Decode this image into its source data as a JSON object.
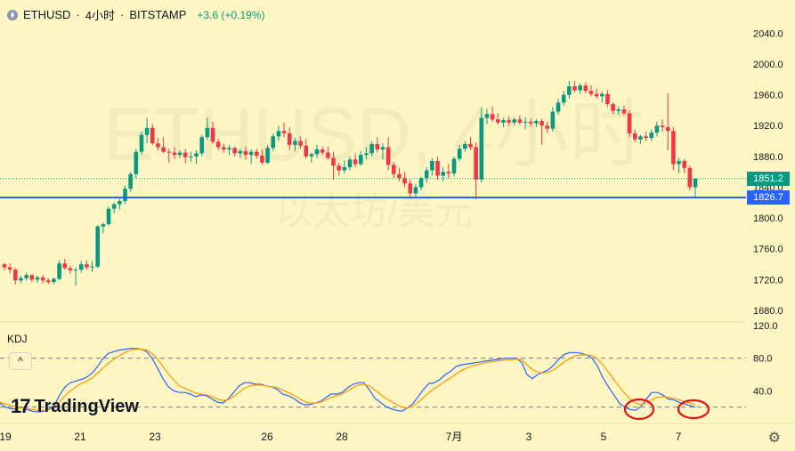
{
  "header": {
    "symbol": "ETHUSD",
    "interval": "4小时",
    "exchange": "BITSTAMP",
    "sep": "·",
    "change": "+3.6 (+0.19%)",
    "icon": "ethereum-icon"
  },
  "watermark": {
    "line1": "ETHUSD, 4小时",
    "line2": "以太坊/美元"
  },
  "indicator": {
    "name": "KDJ",
    "collapse_symbol": "^"
  },
  "brand": {
    "logo_mark": "17",
    "name": "TradingView"
  },
  "colors": {
    "up": "#089981",
    "down": "#f23645",
    "k_line": "#2962ff",
    "d_line": "#ff9800",
    "support": "#2962ff",
    "annotation": "#e81010"
  },
  "chart_data": [
    {
      "type": "candlestick",
      "title": "ETHUSD · 4小时 · BITSTAMP",
      "ylim": [
        1665,
        2060
      ],
      "yticks": [
        "2040.0",
        "2000.0",
        "1960.0",
        "1920.0",
        "1880.0",
        "1840.0",
        "1800.0",
        "1760.0",
        "1720.0",
        "1680.0"
      ],
      "last_price": 1851.2,
      "last_price_label": "1851.2",
      "support_level": 1826.7,
      "support_label": "1826.7",
      "candles": [
        [
          1740,
          1742,
          1732,
          1736
        ],
        [
          1736,
          1741,
          1728,
          1733
        ],
        [
          1733,
          1735,
          1714,
          1719
        ],
        [
          1719,
          1725,
          1716,
          1722
        ],
        [
          1722,
          1729,
          1719,
          1726
        ],
        [
          1726,
          1727,
          1717,
          1720
        ],
        [
          1720,
          1725,
          1716,
          1723
        ],
        [
          1723,
          1726,
          1715,
          1719
        ],
        [
          1719,
          1722,
          1714,
          1717
        ],
        [
          1717,
          1723,
          1714,
          1721
        ],
        [
          1721,
          1745,
          1719,
          1741
        ],
        [
          1741,
          1747,
          1733,
          1735
        ],
        [
          1735,
          1738,
          1728,
          1732
        ],
        [
          1732,
          1736,
          1712,
          1733
        ],
        [
          1733,
          1744,
          1729,
          1740
        ],
        [
          1740,
          1745,
          1733,
          1736
        ],
        [
          1736,
          1744,
          1730,
          1737
        ],
        [
          1737,
          1791,
          1735,
          1789
        ],
        [
          1789,
          1794,
          1780,
          1792
        ],
        [
          1792,
          1815,
          1790,
          1812
        ],
        [
          1812,
          1820,
          1806,
          1818
        ],
        [
          1818,
          1825,
          1811,
          1822
        ],
        [
          1822,
          1842,
          1818,
          1838
        ],
        [
          1838,
          1860,
          1834,
          1857
        ],
        [
          1857,
          1890,
          1852,
          1886
        ],
        [
          1886,
          1912,
          1882,
          1908
        ],
        [
          1908,
          1930,
          1897,
          1917
        ],
        [
          1917,
          1922,
          1895,
          1897
        ],
        [
          1897,
          1904,
          1888,
          1892
        ],
        [
          1892,
          1905,
          1884,
          1886
        ],
        [
          1886,
          1890,
          1872,
          1885
        ],
        [
          1885,
          1892,
          1877,
          1882
        ],
        [
          1882,
          1888,
          1878,
          1885
        ],
        [
          1885,
          1890,
          1871,
          1879
        ],
        [
          1879,
          1886,
          1873,
          1880
        ],
        [
          1880,
          1888,
          1870,
          1884
        ],
        [
          1884,
          1908,
          1880,
          1905
        ],
        [
          1905,
          1930,
          1902,
          1917
        ],
        [
          1917,
          1925,
          1896,
          1899
        ],
        [
          1899,
          1903,
          1888,
          1892
        ],
        [
          1892,
          1896,
          1885,
          1889
        ],
        [
          1889,
          1895,
          1882,
          1891
        ],
        [
          1891,
          1893,
          1880,
          1884
        ],
        [
          1884,
          1890,
          1878,
          1887
        ],
        [
          1887,
          1893,
          1876,
          1882
        ],
        [
          1882,
          1889,
          1870,
          1886
        ],
        [
          1886,
          1890,
          1877,
          1881
        ],
        [
          1881,
          1889,
          1869,
          1872
        ],
        [
          1872,
          1895,
          1870,
          1891
        ],
        [
          1891,
          1910,
          1887,
          1906
        ],
        [
          1906,
          1920,
          1900,
          1913
        ],
        [
          1913,
          1924,
          1905,
          1910
        ],
        [
          1910,
          1918,
          1888,
          1895
        ],
        [
          1895,
          1904,
          1887,
          1900
        ],
        [
          1900,
          1906,
          1890,
          1894
        ],
        [
          1894,
          1903,
          1877,
          1880
        ],
        [
          1880,
          1885,
          1872,
          1883
        ],
        [
          1883,
          1895,
          1878,
          1889
        ],
        [
          1889,
          1893,
          1882,
          1885
        ],
        [
          1885,
          1893,
          1876,
          1878
        ],
        [
          1878,
          1886,
          1850,
          1868
        ],
        [
          1868,
          1872,
          1855,
          1862
        ],
        [
          1862,
          1875,
          1858,
          1866
        ],
        [
          1866,
          1880,
          1862,
          1876
        ],
        [
          1876,
          1884,
          1866,
          1870
        ],
        [
          1870,
          1887,
          1868,
          1882
        ],
        [
          1882,
          1892,
          1876,
          1884
        ],
        [
          1884,
          1900,
          1880,
          1896
        ],
        [
          1896,
          1905,
          1885,
          1889
        ],
        [
          1889,
          1897,
          1876,
          1892
        ],
        [
          1892,
          1905,
          1862,
          1869
        ],
        [
          1869,
          1873,
          1852,
          1857
        ],
        [
          1857,
          1865,
          1848,
          1852
        ],
        [
          1852,
          1860,
          1840,
          1845
        ],
        [
          1845,
          1850,
          1825,
          1832
        ],
        [
          1832,
          1844,
          1828,
          1840
        ],
        [
          1840,
          1854,
          1836,
          1852
        ],
        [
          1852,
          1866,
          1846,
          1862
        ],
        [
          1862,
          1878,
          1855,
          1874
        ],
        [
          1874,
          1880,
          1850,
          1855
        ],
        [
          1855,
          1866,
          1848,
          1860
        ],
        [
          1860,
          1870,
          1852,
          1858
        ],
        [
          1858,
          1880,
          1854,
          1877
        ],
        [
          1877,
          1895,
          1874,
          1890
        ],
        [
          1890,
          1900,
          1886,
          1896
        ],
        [
          1896,
          1905,
          1888,
          1892
        ],
        [
          1892,
          1898,
          1824,
          1850
        ],
        [
          1850,
          1944,
          1846,
          1930
        ],
        [
          1930,
          1942,
          1922,
          1935
        ],
        [
          1935,
          1945,
          1925,
          1928
        ],
        [
          1928,
          1936,
          1921,
          1924
        ],
        [
          1924,
          1930,
          1918,
          1927
        ],
        [
          1927,
          1932,
          1920,
          1924
        ],
        [
          1924,
          1930,
          1920,
          1928
        ],
        [
          1928,
          1933,
          1921,
          1924
        ],
        [
          1924,
          1931,
          1915,
          1925
        ],
        [
          1925,
          1929,
          1919,
          1923
        ],
        [
          1923,
          1928,
          1918,
          1926
        ],
        [
          1926,
          1929,
          1895,
          1920
        ],
        [
          1920,
          1925,
          1910,
          1916
        ],
        [
          1916,
          1944,
          1912,
          1938
        ],
        [
          1938,
          1955,
          1934,
          1950
        ],
        [
          1950,
          1965,
          1946,
          1960
        ],
        [
          1960,
          1978,
          1955,
          1971
        ],
        [
          1971,
          1978,
          1963,
          1966
        ],
        [
          1966,
          1975,
          1961,
          1972
        ],
        [
          1972,
          1976,
          1962,
          1965
        ],
        [
          1965,
          1972,
          1958,
          1961
        ],
        [
          1961,
          1968,
          1955,
          1958
        ],
        [
          1958,
          1964,
          1950,
          1961
        ],
        [
          1961,
          1966,
          1944,
          1948
        ],
        [
          1948,
          1950,
          1935,
          1939
        ],
        [
          1939,
          1945,
          1934,
          1941
        ],
        [
          1941,
          1946,
          1933,
          1936
        ],
        [
          1936,
          1940,
          1905,
          1910
        ],
        [
          1910,
          1915,
          1898,
          1902
        ],
        [
          1902,
          1908,
          1896,
          1906
        ],
        [
          1906,
          1912,
          1900,
          1904
        ],
        [
          1904,
          1915,
          1900,
          1911
        ],
        [
          1911,
          1925,
          1906,
          1920
        ],
        [
          1920,
          1928,
          1912,
          1918
        ],
        [
          1918,
          1962,
          1888,
          1913
        ],
        [
          1913,
          1918,
          1862,
          1870
        ],
        [
          1870,
          1878,
          1858,
          1874
        ],
        [
          1874,
          1877,
          1858,
          1865
        ],
        [
          1865,
          1868,
          1836,
          1840
        ],
        [
          1840,
          1852,
          1826,
          1851
        ]
      ]
    },
    {
      "type": "line",
      "title": "KDJ",
      "ylim": [
        0,
        120
      ],
      "yticks": [
        "120.0",
        "80.0",
        "40.0"
      ],
      "guides": [
        80,
        20
      ],
      "series": [
        {
          "name": "K",
          "values": [
            25,
            20,
            18,
            18,
            20,
            17,
            15,
            14,
            15,
            18,
            22,
            35,
            45,
            50,
            52,
            54,
            57,
            62,
            70,
            80,
            86,
            88,
            90,
            91,
            92,
            92,
            91,
            88,
            80,
            68,
            55,
            45,
            40,
            38,
            38,
            36,
            33,
            35,
            34,
            30,
            26,
            25,
            30,
            38,
            46,
            50,
            50,
            48,
            48,
            46,
            45,
            42,
            36,
            34,
            31,
            26,
            23,
            23,
            25,
            27,
            32,
            36,
            36,
            38,
            44,
            48,
            50,
            50,
            41,
            31,
            26,
            21,
            18,
            16,
            15,
            19,
            24,
            33,
            42,
            49,
            50,
            54,
            60,
            64,
            70,
            72,
            73,
            74,
            75,
            76,
            77,
            78,
            79,
            80,
            80,
            80,
            75,
            60,
            55,
            60,
            63,
            66,
            72,
            80,
            85,
            87,
            87,
            86,
            84,
            80,
            70,
            56,
            45,
            35,
            25,
            20,
            17,
            16,
            21,
            30,
            38,
            38,
            35,
            30,
            29,
            26,
            24,
            22,
            20
          ]
        },
        {
          "name": "D",
          "values": [
            26,
            24,
            22,
            20,
            19,
            18,
            17,
            16,
            16,
            17,
            20,
            27,
            34,
            40,
            45,
            49,
            52,
            56,
            62,
            68,
            74,
            79,
            83,
            87,
            90,
            91,
            91,
            90,
            86,
            79,
            70,
            61,
            53,
            46,
            43,
            40,
            37,
            36,
            35,
            33,
            30,
            28,
            29,
            33,
            38,
            43,
            46,
            47,
            47,
            46,
            45,
            44,
            41,
            38,
            35,
            31,
            27,
            25,
            25,
            26,
            29,
            32,
            34,
            36,
            40,
            44,
            47,
            48,
            46,
            41,
            36,
            31,
            27,
            23,
            20,
            19,
            21,
            26,
            32,
            38,
            43,
            47,
            52,
            56,
            61,
            65,
            68,
            71,
            72,
            74,
            75,
            76,
            77,
            78,
            78,
            79,
            78,
            72,
            66,
            63,
            62,
            63,
            66,
            71,
            76,
            80,
            83,
            84,
            84,
            83,
            79,
            72,
            63,
            54,
            45,
            37,
            30,
            25,
            23,
            25,
            29,
            32,
            33,
            32,
            31,
            29,
            27,
            25,
            23
          ]
        }
      ],
      "annotations": [
        "circled K/D crossover",
        "circled K/D crossover"
      ]
    }
  ],
  "time_axis": [
    "19",
    "21",
    "23",
    "26",
    "28",
    "7月",
    "3",
    "5",
    "7"
  ]
}
